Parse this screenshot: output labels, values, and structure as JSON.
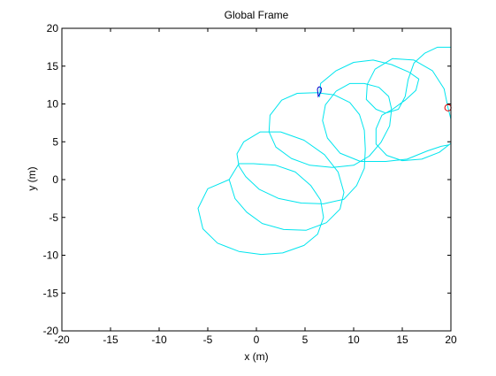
{
  "chart_data": {
    "type": "line",
    "title": "Global Frame",
    "xlabel": "x (m)",
    "ylabel": "y (m)",
    "xlim": [
      -20,
      20
    ],
    "ylim": [
      -20,
      20
    ],
    "xticks": [
      -20,
      -15,
      -10,
      -5,
      0,
      5,
      10,
      15,
      20
    ],
    "yticks": [
      -20,
      -15,
      -10,
      -5,
      0,
      5,
      10,
      15,
      20
    ],
    "grid": false,
    "legend": "none",
    "colors": {
      "path": "#00e5ee",
      "vehicle": "#0000cc",
      "target": "#dd0000",
      "axes": "#000000"
    },
    "series": [
      {
        "points": [
          [
            -2.8,
            0.0
          ],
          [
            -5.0,
            -1.2
          ],
          [
            -6.0,
            -3.8
          ],
          [
            -5.5,
            -6.5
          ],
          [
            -4.0,
            -8.4
          ],
          [
            -1.8,
            -9.5
          ],
          [
            0.5,
            -9.9
          ],
          [
            2.7,
            -9.7
          ],
          [
            4.9,
            -8.7
          ],
          [
            6.3,
            -7.2
          ],
          [
            6.9,
            -5.0
          ],
          [
            6.6,
            -2.7
          ],
          [
            5.6,
            -0.8
          ],
          [
            4.0,
            1.0
          ],
          [
            2.0,
            1.9
          ],
          [
            -0.3,
            2.1
          ],
          [
            -1.8,
            2.1
          ],
          [
            -2.8,
            0.0
          ],
          [
            -2.2,
            -2.5
          ],
          [
            -1.0,
            -4.3
          ],
          [
            0.6,
            -5.8
          ],
          [
            2.8,
            -6.6
          ],
          [
            5.1,
            -6.7
          ],
          [
            7.2,
            -5.7
          ],
          [
            8.6,
            -3.9
          ],
          [
            9.0,
            -1.7
          ],
          [
            8.4,
            1.0
          ],
          [
            7.0,
            3.3
          ],
          [
            4.9,
            5.2
          ],
          [
            2.5,
            6.3
          ],
          [
            0.4,
            6.3
          ],
          [
            -1.3,
            5.0
          ],
          [
            -2.0,
            3.4
          ],
          [
            -1.8,
            1.8
          ],
          [
            -1.1,
            0.4
          ],
          [
            0.3,
            -1.3
          ],
          [
            2.3,
            -2.5
          ],
          [
            4.6,
            -3.1
          ],
          [
            6.9,
            -3.2
          ],
          [
            9.0,
            -2.6
          ],
          [
            10.3,
            -0.8
          ],
          [
            11.1,
            1.5
          ],
          [
            11.2,
            4.0
          ],
          [
            11.1,
            6.5
          ],
          [
            10.6,
            8.6
          ],
          [
            9.6,
            10.2
          ],
          [
            8.0,
            11.2
          ],
          [
            6.2,
            11.5
          ],
          [
            4.2,
            11.4
          ],
          [
            2.6,
            10.5
          ],
          [
            1.4,
            8.5
          ],
          [
            1.3,
            6.3
          ],
          [
            2.0,
            4.3
          ],
          [
            3.6,
            2.8
          ],
          [
            5.5,
            1.9
          ],
          [
            7.8,
            1.6
          ],
          [
            10.0,
            1.9
          ],
          [
            11.6,
            3.1
          ],
          [
            12.8,
            4.9
          ],
          [
            13.7,
            7.1
          ],
          [
            13.9,
            9.3
          ],
          [
            13.6,
            11.0
          ],
          [
            12.6,
            12.2
          ],
          [
            11.1,
            12.7
          ],
          [
            9.6,
            12.7
          ],
          [
            8.2,
            11.7
          ],
          [
            7.1,
            9.9
          ],
          [
            6.8,
            7.8
          ],
          [
            7.3,
            5.5
          ],
          [
            8.6,
            3.5
          ],
          [
            10.7,
            2.4
          ],
          [
            13.3,
            2.4
          ],
          [
            15.5,
            2.7
          ],
          [
            17.6,
            3.8
          ],
          [
            19.0,
            4.4
          ],
          [
            19.8,
            4.6
          ]
        ]
      },
      {
        "points": [
          [
            6.5,
            10.9
          ],
          [
            6.6,
            12.7
          ],
          [
            8.2,
            14.4
          ],
          [
            10.0,
            15.5
          ],
          [
            12.0,
            15.8
          ],
          [
            13.9,
            15.2
          ],
          [
            15.7,
            14.2
          ],
          [
            16.7,
            13.3
          ],
          [
            16.4,
            11.8
          ],
          [
            15.3,
            10.5
          ],
          [
            14.0,
            9.3
          ],
          [
            12.9,
            8.5
          ],
          [
            12.3,
            6.7
          ],
          [
            12.3,
            4.7
          ],
          [
            13.4,
            3.2
          ],
          [
            15.0,
            2.5
          ],
          [
            17.0,
            2.7
          ],
          [
            18.8,
            3.6
          ],
          [
            20.0,
            4.8
          ],
          [
            20.0,
            8.0
          ],
          [
            19.7,
            9.5
          ],
          [
            19.3,
            12.0
          ],
          [
            18.1,
            14.4
          ],
          [
            16.2,
            15.8
          ],
          [
            14.0,
            16.0
          ],
          [
            12.2,
            14.6
          ],
          [
            11.4,
            12.6
          ],
          [
            11.3,
            10.6
          ],
          [
            12.3,
            9.3
          ],
          [
            13.3,
            8.8
          ],
          [
            14.6,
            9.3
          ],
          [
            15.3,
            11.0
          ],
          [
            15.6,
            13.2
          ],
          [
            16.2,
            15.4
          ],
          [
            17.3,
            16.7
          ],
          [
            18.6,
            17.5
          ],
          [
            20.0,
            17.5
          ]
        ]
      }
    ],
    "vehicle": {
      "x": 6.5,
      "y": 11.7
    },
    "target": {
      "x": 19.7,
      "y": 9.5
    }
  }
}
